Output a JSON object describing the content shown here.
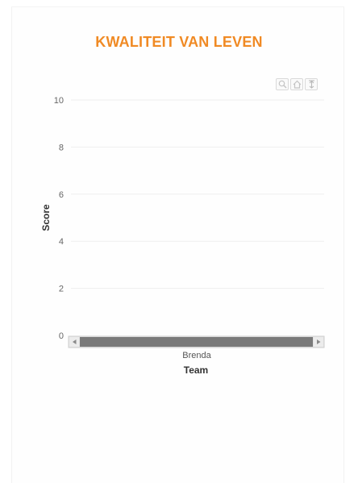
{
  "chart_title": "KWALITEIT VAN LEVEN",
  "toolbar": {
    "zoom_icon": "zoom-icon",
    "reset_icon": "home-reset-icon",
    "pan_icon": "pan-icon"
  },
  "colors": {
    "title": "#f08a24",
    "grid": "#eeeeee",
    "scrollbar": "#7a7a7a"
  },
  "chart_data": {
    "type": "bar",
    "title": "KWALITEIT VAN LEVEN",
    "xlabel": "Team",
    "ylabel": "Score",
    "categories": [
      "Brenda"
    ],
    "series": [
      {
        "values": [
          0
        ]
      }
    ],
    "yticks": [
      0,
      2,
      4,
      6,
      8,
      10
    ],
    "ylim": [
      0,
      10
    ],
    "grid": true,
    "legend": "none"
  }
}
